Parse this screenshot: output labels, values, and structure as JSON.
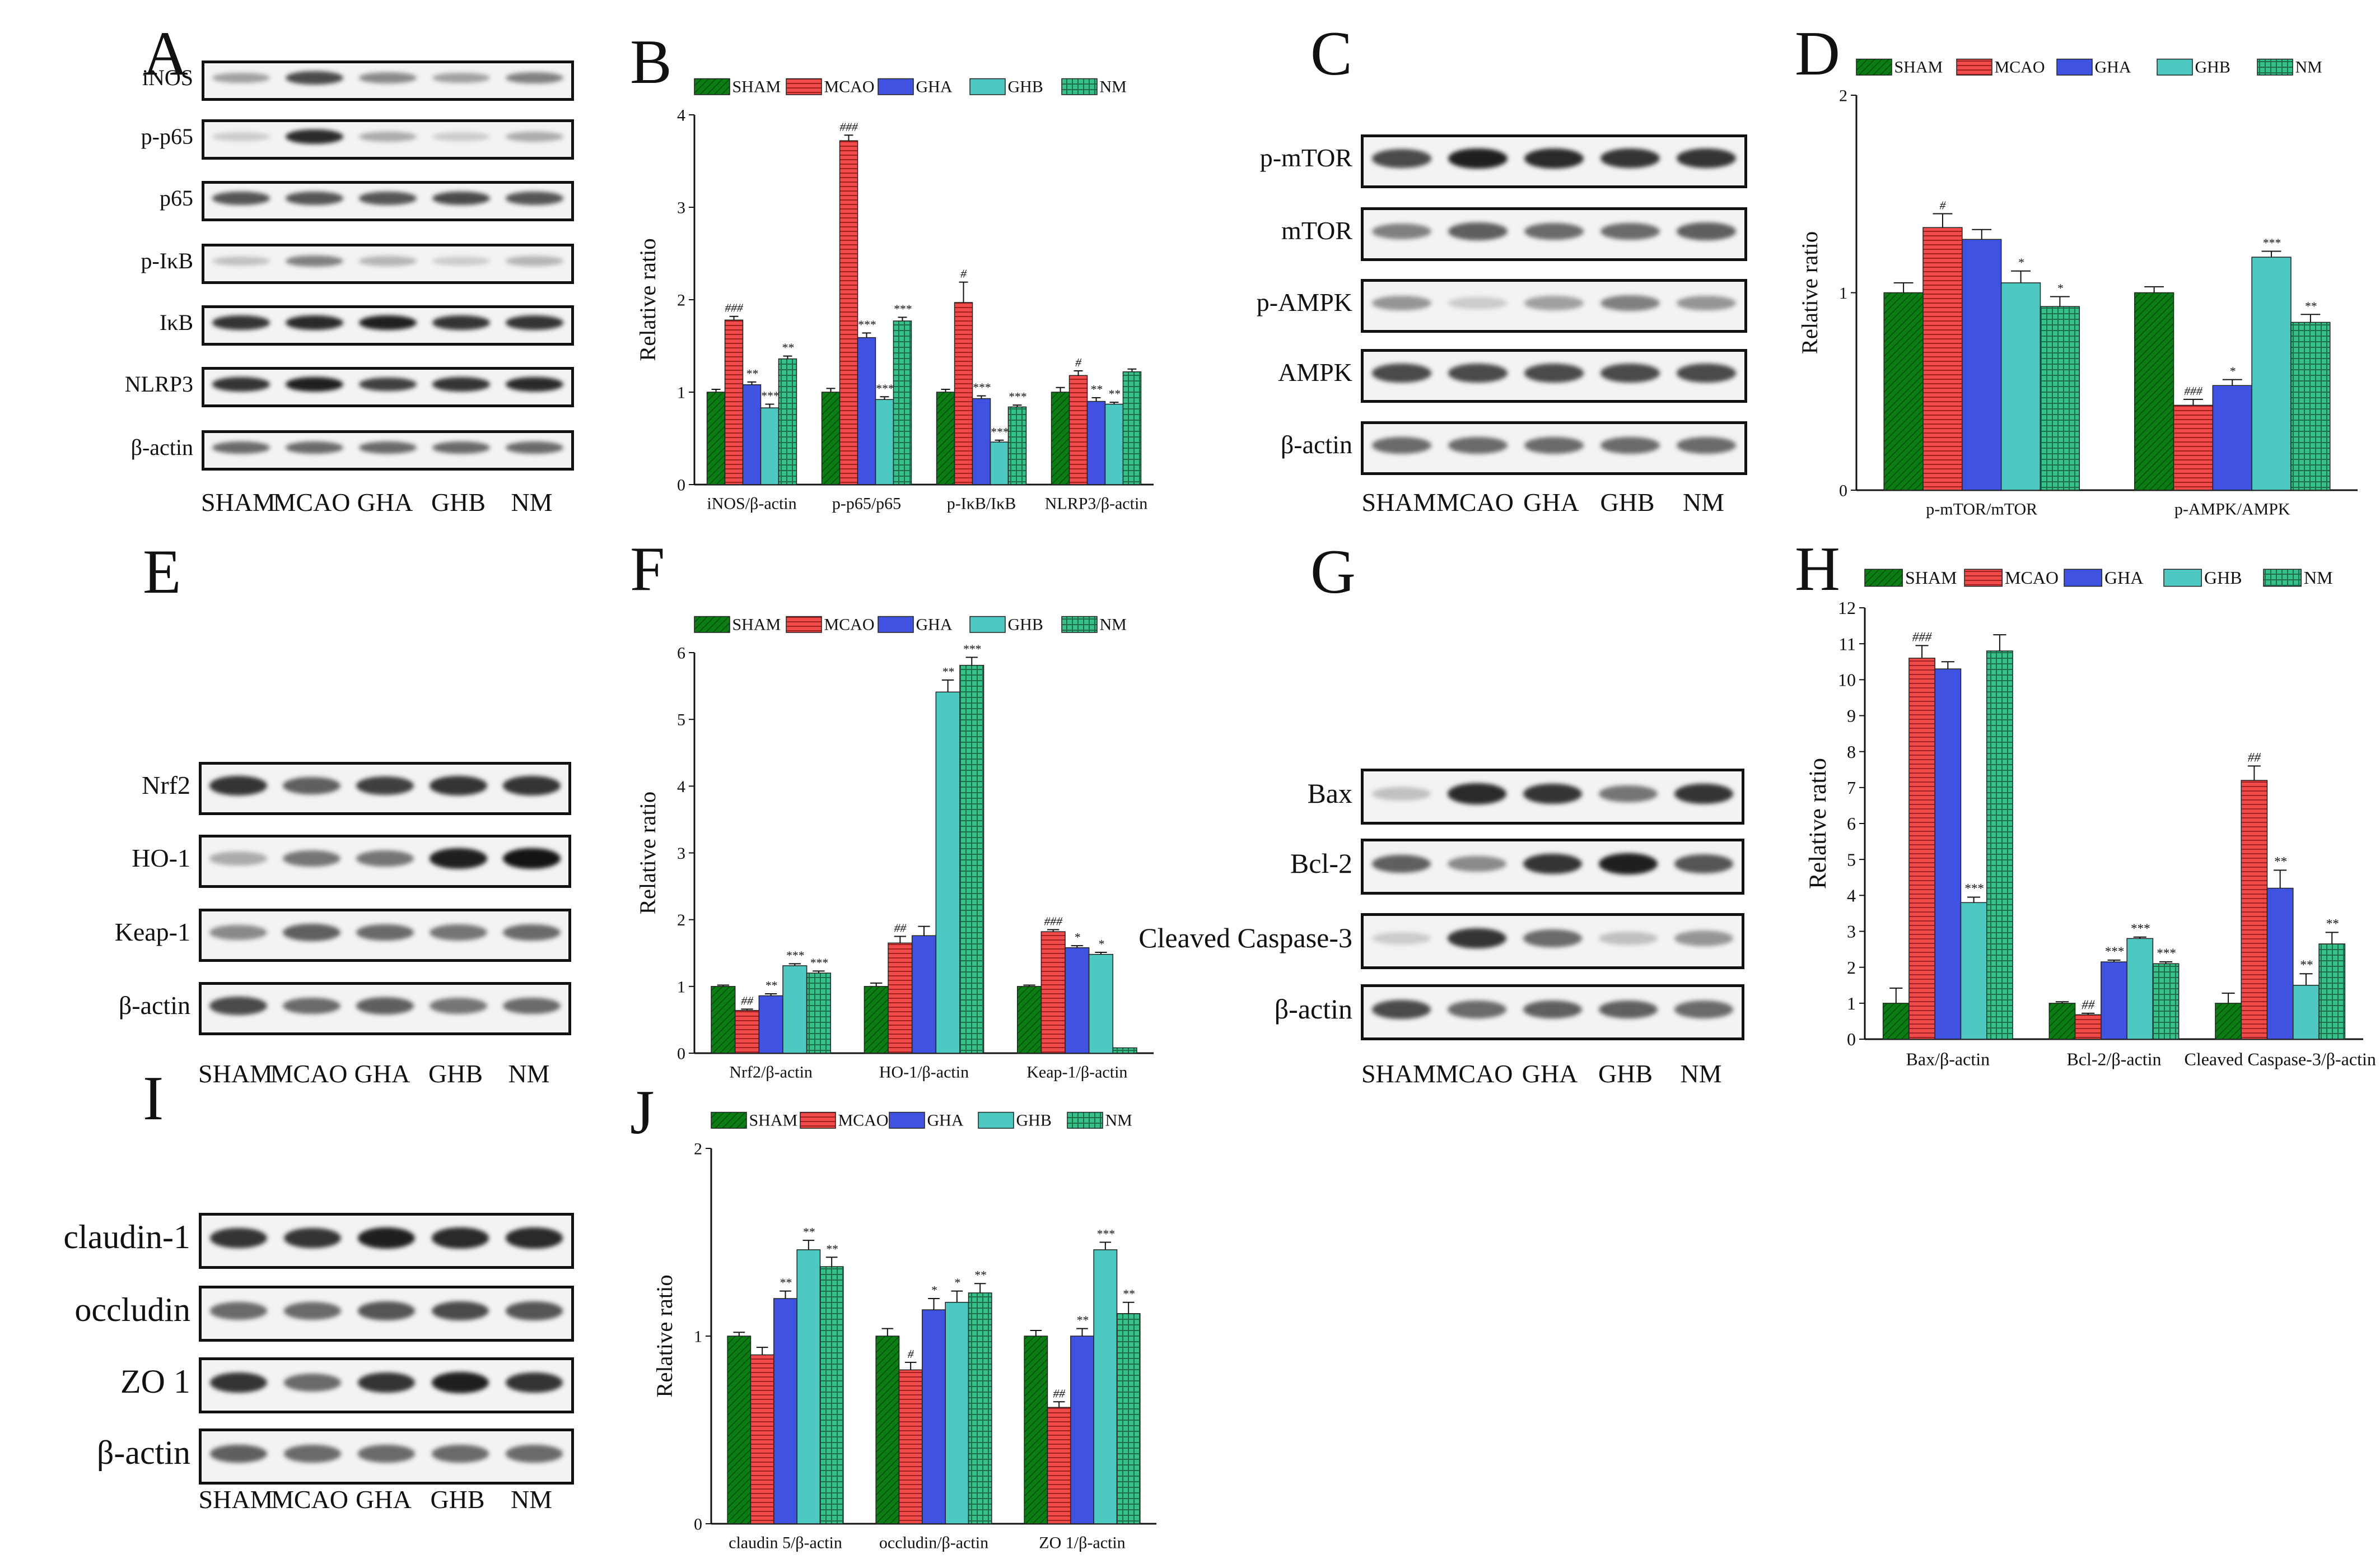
{
  "figure": {
    "panel_letters": [
      "A",
      "B",
      "C",
      "D",
      "E",
      "F",
      "G",
      "H",
      "I",
      "J"
    ],
    "colors": {
      "SHAM": "#0b7d14",
      "MCAO": "#ef4b4b",
      "GHA": "#3f52e0",
      "GHB": "#4ec9c1",
      "NM": "#36c08a",
      "axis": "#111111"
    },
    "patterns": {
      "SHAM": "diag",
      "MCAO": "hlines",
      "GHA": "none",
      "GHB": "none",
      "NM": "grid"
    }
  },
  "blots": [
    {
      "panel": "A",
      "lanes": [
        "SHAM",
        "MCAO",
        "GHA",
        "GHB",
        "NM"
      ],
      "rows": [
        {
          "name": "iNOS",
          "intensity": [
            0.35,
            0.75,
            0.45,
            0.35,
            0.5
          ]
        },
        {
          "name": "p-p65",
          "intensity": [
            0.15,
            0.9,
            0.3,
            0.15,
            0.3
          ]
        },
        {
          "name": "p65",
          "intensity": [
            0.7,
            0.7,
            0.7,
            0.75,
            0.7
          ]
        },
        {
          "name": "p-IκB",
          "intensity": [
            0.2,
            0.5,
            0.25,
            0.15,
            0.25
          ]
        },
        {
          "name": "IκB",
          "intensity": [
            0.85,
            0.9,
            0.95,
            0.85,
            0.85
          ]
        },
        {
          "name": "NLRP3",
          "intensity": [
            0.85,
            0.95,
            0.8,
            0.85,
            0.9
          ]
        },
        {
          "name": "β-actin",
          "intensity": [
            0.6,
            0.6,
            0.6,
            0.6,
            0.6
          ]
        }
      ]
    },
    {
      "panel": "C",
      "lanes": [
        "SHAM",
        "MCAO",
        "GHA",
        "GHB",
        "NM"
      ],
      "rows": [
        {
          "name": "p-mTOR",
          "intensity": [
            0.75,
            0.95,
            0.9,
            0.85,
            0.85
          ]
        },
        {
          "name": "mTOR",
          "intensity": [
            0.5,
            0.65,
            0.6,
            0.6,
            0.65
          ]
        },
        {
          "name": "p-AMPK",
          "intensity": [
            0.4,
            0.15,
            0.35,
            0.5,
            0.4
          ]
        },
        {
          "name": "AMPK",
          "intensity": [
            0.75,
            0.75,
            0.75,
            0.75,
            0.75
          ]
        },
        {
          "name": "β-actin",
          "intensity": [
            0.6,
            0.6,
            0.6,
            0.6,
            0.6
          ]
        }
      ]
    },
    {
      "panel": "E",
      "lanes": [
        "SHAM",
        "MCAO",
        "GHA",
        "GHB",
        "NM"
      ],
      "rows": [
        {
          "name": "Nrf2",
          "intensity": [
            0.85,
            0.65,
            0.8,
            0.85,
            0.85
          ]
        },
        {
          "name": "HO-1",
          "intensity": [
            0.3,
            0.55,
            0.55,
            0.95,
            1.0
          ]
        },
        {
          "name": "Keap-1",
          "intensity": [
            0.45,
            0.65,
            0.6,
            0.55,
            0.6
          ]
        },
        {
          "name": "β-actin",
          "intensity": [
            0.75,
            0.6,
            0.65,
            0.55,
            0.6
          ]
        }
      ]
    },
    {
      "panel": "G",
      "lanes": [
        "SHAM",
        "MCAO",
        "GHA",
        "GHB",
        "NM"
      ],
      "rows": [
        {
          "name": "Bax",
          "intensity": [
            0.2,
            0.9,
            0.85,
            0.55,
            0.85
          ]
        },
        {
          "name": "Bcl-2",
          "intensity": [
            0.65,
            0.45,
            0.85,
            0.95,
            0.7
          ]
        },
        {
          "name": "Cleaved Caspase-3",
          "intensity": [
            0.15,
            0.85,
            0.6,
            0.2,
            0.4
          ]
        },
        {
          "name": "β-actin",
          "intensity": [
            0.75,
            0.6,
            0.65,
            0.65,
            0.6
          ]
        }
      ]
    },
    {
      "panel": "I",
      "lanes": [
        "SHAM",
        "MCAO",
        "GHA",
        "GHB",
        "NM"
      ],
      "rows": [
        {
          "name": "claudin-1",
          "intensity": [
            0.85,
            0.85,
            0.95,
            0.9,
            0.9
          ]
        },
        {
          "name": "occludin",
          "intensity": [
            0.6,
            0.6,
            0.7,
            0.75,
            0.7
          ]
        },
        {
          "name": "ZO 1",
          "intensity": [
            0.85,
            0.6,
            0.85,
            0.95,
            0.85
          ]
        },
        {
          "name": "β-actin",
          "intensity": [
            0.65,
            0.6,
            0.6,
            0.6,
            0.6
          ]
        }
      ]
    }
  ],
  "chart_data": [
    {
      "panel": "B",
      "type": "bar",
      "title": "",
      "xlabel": "",
      "ylabel": "Relative ratio",
      "ylim": [
        0,
        4
      ],
      "yticks": [
        "0",
        "1",
        "2",
        "3",
        "4"
      ],
      "legend": [
        "SHAM",
        "MCAO",
        "GHA",
        "GHB",
        "NM"
      ],
      "categories": [
        "iNOS/β-actin",
        "p-p65/p65",
        "p-IκB/IκB",
        "NLRP3/β-actin"
      ],
      "series": [
        {
          "name": "SHAM",
          "values": [
            1.0,
            1.0,
            1.0,
            1.0
          ],
          "errors": [
            0.03,
            0.04,
            0.03,
            0.05
          ],
          "labels": [
            "",
            "",
            "",
            ""
          ]
        },
        {
          "name": "MCAO",
          "values": [
            1.78,
            3.72,
            1.97,
            1.18
          ],
          "errors": [
            0.04,
            0.06,
            0.22,
            0.05
          ],
          "labels": [
            "###",
            "###",
            "#",
            "#"
          ]
        },
        {
          "name": "GHA",
          "values": [
            1.08,
            1.59,
            0.93,
            0.9
          ],
          "errors": [
            0.03,
            0.05,
            0.03,
            0.04
          ],
          "labels": [
            "**",
            "***",
            "***",
            "**"
          ]
        },
        {
          "name": "GHB",
          "values": [
            0.83,
            0.92,
            0.46,
            0.87
          ],
          "errors": [
            0.04,
            0.03,
            0.02,
            0.02
          ],
          "labels": [
            "***",
            "***",
            "***",
            "**"
          ]
        },
        {
          "name": "NM",
          "values": [
            1.36,
            1.77,
            0.84,
            1.22
          ],
          "errors": [
            0.03,
            0.04,
            0.02,
            0.03
          ],
          "labels": [
            "**",
            "***",
            "***",
            ""
          ]
        }
      ]
    },
    {
      "panel": "D",
      "type": "bar",
      "title": "",
      "xlabel": "",
      "ylabel": "Relative ratio",
      "ylim": [
        0,
        2
      ],
      "yticks": [
        "0",
        "1",
        "2"
      ],
      "legend": [
        "SHAM",
        "MCAO",
        "GHA",
        "GHB",
        "NM"
      ],
      "categories": [
        "p-mTOR/mTOR",
        "p-AMPK/AMPK"
      ],
      "series": [
        {
          "name": "SHAM",
          "values": [
            1.0,
            1.0
          ],
          "errors": [
            0.05,
            0.03
          ],
          "labels": [
            "",
            ""
          ]
        },
        {
          "name": "MCAO",
          "values": [
            1.33,
            0.43
          ],
          "errors": [
            0.07,
            0.03
          ],
          "labels": [
            "#",
            "###"
          ]
        },
        {
          "name": "GHA",
          "values": [
            1.27,
            0.53
          ],
          "errors": [
            0.05,
            0.03
          ],
          "labels": [
            "",
            "*"
          ]
        },
        {
          "name": "GHB",
          "values": [
            1.05,
            1.18
          ],
          "errors": [
            0.06,
            0.03
          ],
          "labels": [
            "*",
            "***"
          ]
        },
        {
          "name": "NM",
          "values": [
            0.93,
            0.85
          ],
          "errors": [
            0.05,
            0.04
          ],
          "labels": [
            "*",
            "**"
          ]
        }
      ]
    },
    {
      "panel": "F",
      "type": "bar",
      "title": "",
      "xlabel": "",
      "ylabel": "Relative ratio",
      "ylim": [
        0,
        6
      ],
      "yticks": [
        "0",
        "1",
        "2",
        "3",
        "4",
        "5",
        "6"
      ],
      "legend": [
        "SHAM",
        "MCAO",
        "GHA",
        "GHB",
        "NM"
      ],
      "categories": [
        "Nrf2/β-actin",
        "HO-1/β-actin",
        "Keap-1/β-actin"
      ],
      "series": [
        {
          "name": "SHAM",
          "values": [
            1.0,
            1.0,
            1.0
          ],
          "errors": [
            0.02,
            0.05,
            0.02
          ],
          "labels": [
            "",
            "",
            ""
          ]
        },
        {
          "name": "MCAO",
          "values": [
            0.64,
            1.65,
            1.82
          ],
          "errors": [
            0.02,
            0.1,
            0.03
          ],
          "labels": [
            "##",
            "##",
            "###"
          ]
        },
        {
          "name": "GHA",
          "values": [
            0.86,
            1.76,
            1.58
          ],
          "errors": [
            0.03,
            0.14,
            0.03
          ],
          "labels": [
            "**",
            "",
            "*"
          ]
        },
        {
          "name": "GHB",
          "values": [
            1.31,
            5.41,
            1.48
          ],
          "errors": [
            0.03,
            0.18,
            0.03
          ],
          "labels": [
            "***",
            "**",
            "*"
          ]
        },
        {
          "name": "NM",
          "values": [
            1.2,
            5.81,
            0.08
          ],
          "errors": [
            0.03,
            0.12,
            0.0
          ],
          "labels": [
            "***",
            "***",
            ""
          ]
        }
      ]
    },
    {
      "panel": "H",
      "type": "bar",
      "title": "",
      "xlabel": "",
      "ylabel": "Relative ratio",
      "ylim": [
        0,
        12
      ],
      "yticks": [
        "0",
        "1",
        "2",
        "3",
        "4",
        "5",
        "6",
        "7",
        "8",
        "9",
        "10",
        "11",
        "12"
      ],
      "legend": [
        "SHAM",
        "MCAO",
        "GHA",
        "GHB",
        "NM"
      ],
      "categories": [
        "Bax/β-actin",
        "Bcl-2/β-actin",
        "Cleaved Caspase-3/β-actin"
      ],
      "series": [
        {
          "name": "SHAM",
          "values": [
            1.0,
            1.0,
            1.0
          ],
          "errors": [
            0.42,
            0.04,
            0.28
          ],
          "labels": [
            "",
            "",
            ""
          ]
        },
        {
          "name": "MCAO",
          "values": [
            10.6,
            0.68,
            7.2
          ],
          "errors": [
            0.35,
            0.04,
            0.4
          ],
          "labels": [
            "###",
            "##",
            "##"
          ]
        },
        {
          "name": "GHA",
          "values": [
            10.3,
            2.15,
            4.2
          ],
          "errors": [
            0.2,
            0.05,
            0.5
          ],
          "labels": [
            "",
            "***",
            "**"
          ]
        },
        {
          "name": "GHB",
          "values": [
            3.8,
            2.8,
            1.5
          ],
          "errors": [
            0.15,
            0.04,
            0.32
          ],
          "labels": [
            "***",
            "***",
            "**"
          ]
        },
        {
          "name": "NM",
          "values": [
            10.8,
            2.1,
            2.65
          ],
          "errors": [
            0.45,
            0.05,
            0.32
          ],
          "labels": [
            "",
            "***",
            "**"
          ]
        }
      ]
    },
    {
      "panel": "J",
      "type": "bar",
      "title": "",
      "xlabel": "",
      "ylabel": "Relative ratio",
      "ylim": [
        0,
        2
      ],
      "yticks": [
        "0",
        "1",
        "2"
      ],
      "legend": [
        "SHAM",
        "MCAO",
        "GHA",
        "GHB",
        "NM"
      ],
      "categories": [
        "claudin 5/β-actin",
        "occludin/β-actin",
        "ZO 1/β-actin"
      ],
      "series": [
        {
          "name": "SHAM",
          "values": [
            1.0,
            1.0,
            1.0
          ],
          "errors": [
            0.02,
            0.04,
            0.03
          ],
          "labels": [
            "",
            "",
            ""
          ]
        },
        {
          "name": "MCAO",
          "values": [
            0.9,
            0.82,
            0.62
          ],
          "errors": [
            0.04,
            0.04,
            0.03
          ],
          "labels": [
            "",
            "#",
            "##"
          ]
        },
        {
          "name": "GHA",
          "values": [
            1.2,
            1.14,
            1.0
          ],
          "errors": [
            0.04,
            0.06,
            0.04
          ],
          "labels": [
            "**",
            "*",
            "**"
          ]
        },
        {
          "name": "GHB",
          "values": [
            1.46,
            1.18,
            1.46
          ],
          "errors": [
            0.05,
            0.06,
            0.04
          ],
          "labels": [
            "**",
            "*",
            "***"
          ]
        },
        {
          "name": "NM",
          "values": [
            1.37,
            1.23,
            1.12
          ],
          "errors": [
            0.05,
            0.05,
            0.06
          ],
          "labels": [
            "**",
            "**",
            "**"
          ]
        }
      ]
    }
  ]
}
